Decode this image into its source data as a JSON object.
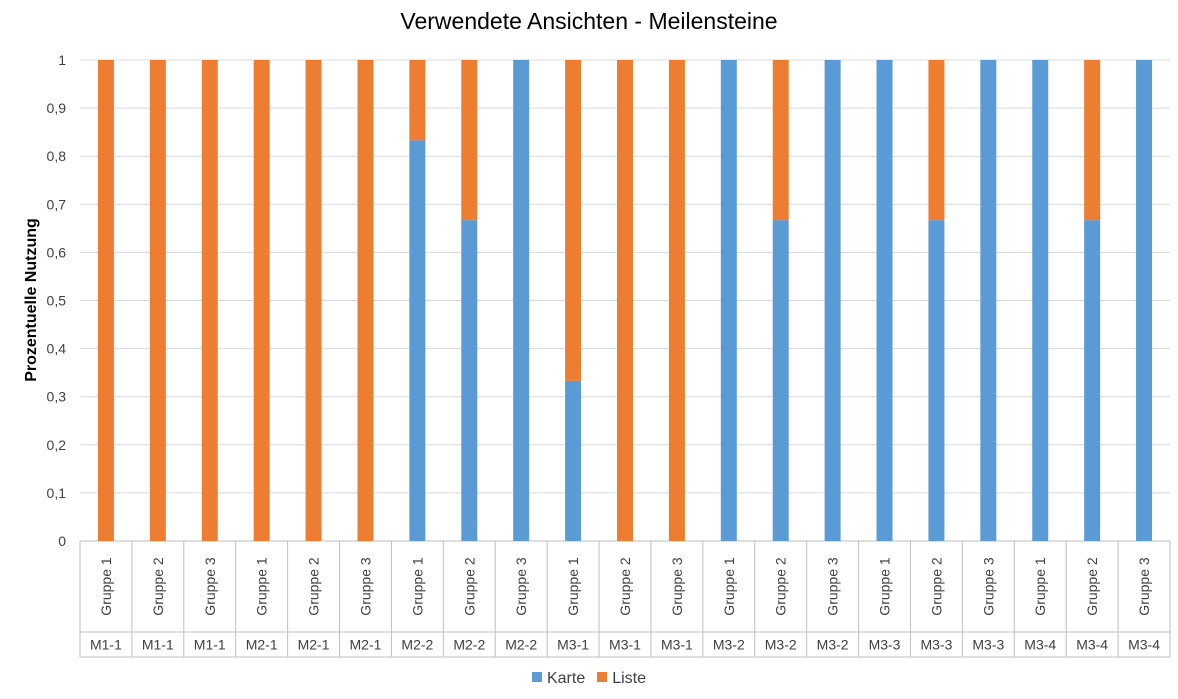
{
  "chart_data": {
    "type": "bar",
    "stacked": true,
    "title": "Verwendete Ansichten - Meilensteine",
    "xlabel": "",
    "ylabel": "Prozentuelle Nutzung",
    "ylim": [
      0,
      1
    ],
    "yticks": [
      "0",
      "0,1",
      "0,2",
      "0,3",
      "0,4",
      "0,5",
      "0,6",
      "0,7",
      "0,8",
      "0,9",
      "1"
    ],
    "grid": true,
    "legend_position": "bottom",
    "categories": [
      {
        "group": "Gruppe 1",
        "milestone": "M1-1"
      },
      {
        "group": "Gruppe 2",
        "milestone": "M1-1"
      },
      {
        "group": "Gruppe 3",
        "milestone": "M1-1"
      },
      {
        "group": "Gruppe 1",
        "milestone": "M2-1"
      },
      {
        "group": "Gruppe 2",
        "milestone": "M2-1"
      },
      {
        "group": "Gruppe 3",
        "milestone": "M2-1"
      },
      {
        "group": "Gruppe 1",
        "milestone": "M2-2"
      },
      {
        "group": "Gruppe 2",
        "milestone": "M2-2"
      },
      {
        "group": "Gruppe 3",
        "milestone": "M2-2"
      },
      {
        "group": "Gruppe 1",
        "milestone": "M3-1"
      },
      {
        "group": "Gruppe 2",
        "milestone": "M3-1"
      },
      {
        "group": "Gruppe 3",
        "milestone": "M3-1"
      },
      {
        "group": "Gruppe 1",
        "milestone": "M3-2"
      },
      {
        "group": "Gruppe 2",
        "milestone": "M3-2"
      },
      {
        "group": "Gruppe 3",
        "milestone": "M3-2"
      },
      {
        "group": "Gruppe 1",
        "milestone": "M3-3"
      },
      {
        "group": "Gruppe 2",
        "milestone": "M3-3"
      },
      {
        "group": "Gruppe 3",
        "milestone": "M3-3"
      },
      {
        "group": "Gruppe 1",
        "milestone": "M3-4"
      },
      {
        "group": "Gruppe 2",
        "milestone": "M3-4"
      },
      {
        "group": "Gruppe 3",
        "milestone": "M3-4"
      }
    ],
    "series": [
      {
        "name": "Karte",
        "color": "#5b9bd5",
        "values": [
          0,
          0,
          0,
          0,
          0,
          0,
          0.833,
          0.667,
          1,
          0.333,
          0,
          0,
          1,
          0.667,
          1,
          1,
          0.667,
          1,
          1,
          0.667,
          1
        ]
      },
      {
        "name": "Liste",
        "color": "#ed7d31",
        "values": [
          1,
          1,
          1,
          1,
          1,
          1,
          0.167,
          0.333,
          0,
          0.667,
          1,
          1,
          0,
          0.333,
          0,
          0,
          0.333,
          0,
          0,
          0.333,
          0
        ]
      }
    ]
  }
}
